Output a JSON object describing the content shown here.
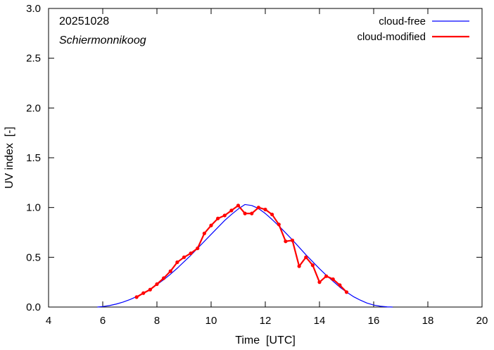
{
  "chart_data": {
    "type": "line",
    "annotations": {
      "date": "20251028",
      "location": "Schiermonnikoog"
    },
    "xlabel": "Time  [UTC]",
    "ylabel": "UV index  [-]",
    "xlim": [
      4,
      20
    ],
    "ylim": [
      0.0,
      3.0
    ],
    "x_ticks": [
      4,
      6,
      8,
      10,
      12,
      14,
      16,
      18,
      20
    ],
    "y_ticks": [
      0.0,
      0.5,
      1.0,
      1.5,
      2.0,
      2.5,
      3.0
    ],
    "y_tick_labels": [
      "0.0",
      "0.5",
      "1.0",
      "1.5",
      "2.0",
      "2.5",
      "3.0"
    ],
    "grid": false,
    "legend_position": "top-right",
    "series": [
      {
        "name": "cloud-free",
        "color": "#0000ff",
        "style": "line",
        "peak": {
          "x": 11.25,
          "y": 1.03
        },
        "x": [
          5.8,
          6.0,
          6.25,
          6.5,
          6.75,
          7.0,
          7.25,
          7.5,
          7.75,
          8.0,
          8.25,
          8.5,
          8.75,
          9.0,
          9.25,
          9.5,
          9.75,
          10.0,
          10.25,
          10.5,
          10.75,
          11.0,
          11.25,
          11.5,
          11.75,
          12.0,
          12.25,
          12.5,
          12.75,
          13.0,
          13.25,
          13.5,
          13.75,
          14.0,
          14.25,
          14.5,
          14.75,
          15.0,
          15.25,
          15.5,
          15.75,
          16.0,
          16.25,
          16.5,
          16.7
        ],
        "y": [
          0.0,
          0.005,
          0.015,
          0.03,
          0.05,
          0.075,
          0.105,
          0.14,
          0.18,
          0.225,
          0.275,
          0.33,
          0.39,
          0.455,
          0.52,
          0.59,
          0.66,
          0.73,
          0.8,
          0.87,
          0.93,
          0.985,
          1.03,
          1.02,
          0.99,
          0.94,
          0.88,
          0.815,
          0.745,
          0.675,
          0.6,
          0.525,
          0.455,
          0.385,
          0.32,
          0.26,
          0.2,
          0.15,
          0.105,
          0.07,
          0.04,
          0.02,
          0.008,
          0.002,
          0.0
        ]
      },
      {
        "name": "cloud-modified",
        "color": "#ff0000",
        "style": "line+markers",
        "x": [
          7.25,
          7.5,
          7.75,
          8.0,
          8.25,
          8.5,
          8.75,
          9.0,
          9.25,
          9.5,
          9.75,
          10.0,
          10.25,
          10.5,
          10.75,
          11.0,
          11.25,
          11.5,
          11.75,
          12.0,
          12.25,
          12.5,
          12.75,
          13.0,
          13.25,
          13.5,
          13.75,
          14.0,
          14.25,
          14.5,
          14.75,
          15.0
        ],
        "y": [
          0.1,
          0.14,
          0.175,
          0.23,
          0.29,
          0.36,
          0.45,
          0.5,
          0.54,
          0.59,
          0.74,
          0.82,
          0.89,
          0.92,
          0.97,
          1.02,
          0.94,
          0.94,
          1.0,
          0.98,
          0.93,
          0.83,
          0.66,
          0.67,
          0.41,
          0.5,
          0.42,
          0.25,
          0.31,
          0.28,
          0.22,
          0.15
        ]
      }
    ]
  }
}
